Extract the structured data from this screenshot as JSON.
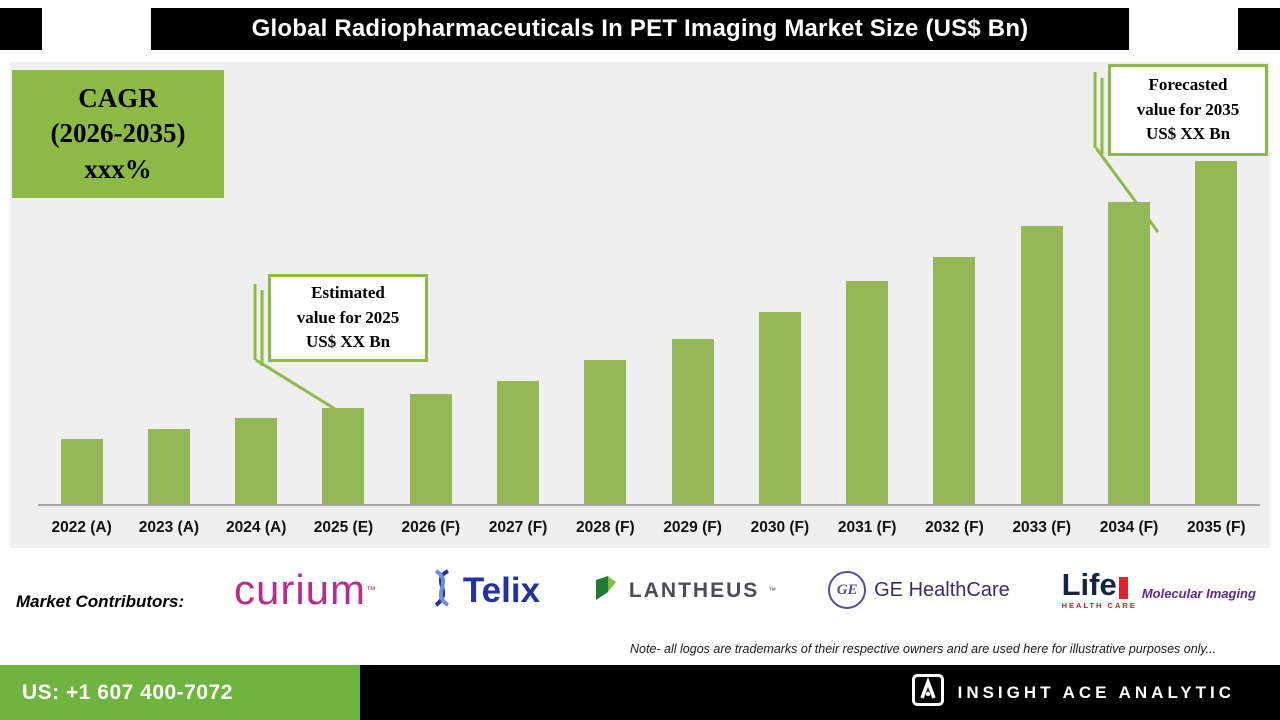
{
  "header": {
    "title": "Global Radiopharmaceuticals In PET Imaging Market Size (US$ Bn)"
  },
  "chart_data": {
    "type": "bar",
    "title": "Global Radiopharmaceuticals In PET Imaging Market Size (US$ Bn)",
    "categories": [
      "2022 (A)",
      "2023 (A)",
      "2024 (A)",
      "2025 (E)",
      "2026 (F)",
      "2027 (F)",
      "2028 (F)",
      "2029 (F)",
      "2030 (F)",
      "2031 (F)",
      "2032 (F)",
      "2033 (F)",
      "2034 (F)",
      "2035 (F)"
    ],
    "values": [
      19,
      22,
      25,
      28,
      32,
      36,
      42,
      48,
      56,
      65,
      72,
      81,
      88,
      100
    ],
    "values_note": "Actual US$ Bn values are masked in the source as 'XX'; values are relative bar heights on a 0-100 scale",
    "ylim": [
      0,
      100
    ],
    "xlabel": "",
    "ylabel": "",
    "grid": false,
    "legend": false,
    "bar_color": "#94b857",
    "plot_background": "#efefef"
  },
  "annotations": {
    "cagr": {
      "line1": "CAGR",
      "line2": "(2026-2035)",
      "line3": "xxx%"
    },
    "estimated": {
      "line1": "Estimated",
      "line2": "value for 2025",
      "line3": "US$ XX Bn"
    },
    "forecasted": {
      "line1": "Forecasted",
      "line2": "value for 2035",
      "line3": "US$ XX Bn"
    }
  },
  "contributors": {
    "label": "Market Contributors:",
    "logos": [
      {
        "name": "Curium",
        "text": "curium",
        "tm": "™"
      },
      {
        "name": "Telix",
        "text": "Telix"
      },
      {
        "name": "Lantheus",
        "text": "LANTHEUS",
        "tm": "™"
      },
      {
        "name": "GE HealthCare",
        "monogram": "GE",
        "text": "GE HealthCare"
      },
      {
        "name": "Life Molecular Imaging",
        "text_main": "Life",
        "text_sub": "HEALTH CARE",
        "text_side": "Molecular Imaging"
      }
    ],
    "note": "Note- all logos are trademarks of their respective owners and are used here for illustrative purposes only..."
  },
  "footer": {
    "phone": "US: +1 607 400-7072",
    "brand": "INSIGHT ACE ANALYTIC"
  },
  "colors": {
    "bar_green": "#94b857",
    "accent_green": "#8db947",
    "footer_green": "#6fb43f",
    "chart_background": "#efefef",
    "curium_magenta": "#b92c8f",
    "telix_blue": "#24339b",
    "lantheus_gray": "#4a4f54",
    "ge_purple": "#5a4a9f",
    "life_navy": "#16243d",
    "life_purple": "#5b2d8e",
    "life_red": "#e0222d"
  }
}
